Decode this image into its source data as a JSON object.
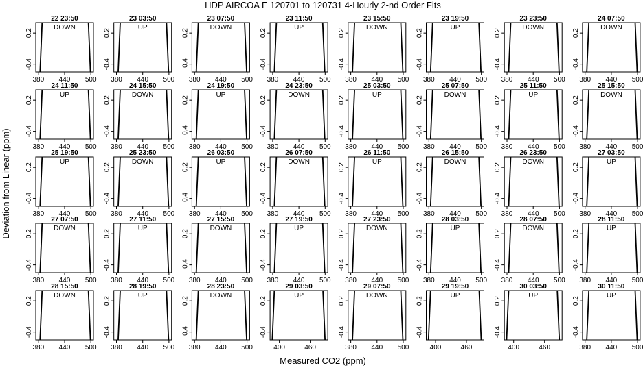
{
  "chart_data": {
    "type": "line",
    "title": "HDP    AIRCOA E    120701 to 120731    4-Hourly 2-nd Order Fits",
    "xlabel": "Measured CO2 (ppm)",
    "ylabel": "Deviation from Linear (ppm)",
    "yticks": [
      "-0.4",
      "0.2"
    ],
    "ylim": [
      -0.55,
      0.4
    ],
    "axis_sets": [
      {
        "xlim": [
          374,
          506
        ],
        "xticks": [
          {
            "v": 380,
            "t": "380"
          },
          {
            "v": 440,
            "t": "440"
          },
          {
            "v": 500,
            "t": "500"
          }
        ]
      },
      {
        "xlim": [
          382,
          494
        ],
        "xticks": [
          {
            "v": 400,
            "t": "400"
          },
          {
            "v": 460,
            "t": "460"
          }
        ]
      }
    ],
    "panels": [
      {
        "label": "22 23:50",
        "direction": "DOWN",
        "axis": 0,
        "x": [
          387,
          496
        ]
      },
      {
        "label": "23 03:50",
        "direction": "UP",
        "axis": 0,
        "x": [
          387,
          496
        ]
      },
      {
        "label": "23 07:50",
        "direction": "DOWN",
        "axis": 0,
        "x": [
          387,
          496
        ]
      },
      {
        "label": "23 11:50",
        "direction": "UP",
        "axis": 0,
        "x": [
          387,
          496
        ]
      },
      {
        "label": "23 15:50",
        "direction": "DOWN",
        "axis": 0,
        "x": [
          387,
          496
        ]
      },
      {
        "label": "23 19:50",
        "direction": "UP",
        "axis": 0,
        "x": [
          387,
          496
        ]
      },
      {
        "label": "23 23:50",
        "direction": "DOWN",
        "axis": 0,
        "x": [
          387,
          496
        ]
      },
      {
        "label": "24 07:50",
        "direction": "DOWN",
        "axis": 0,
        "x": [
          387,
          496
        ]
      },
      {
        "label": "24 11:50",
        "direction": "UP",
        "axis": 0,
        "x": [
          387,
          496
        ]
      },
      {
        "label": "24 15:50",
        "direction": "DOWN",
        "axis": 0,
        "x": [
          387,
          496
        ]
      },
      {
        "label": "24 19:50",
        "direction": "UP",
        "axis": 0,
        "x": [
          387,
          496
        ]
      },
      {
        "label": "24 23:50",
        "direction": "DOWN",
        "axis": 0,
        "x": [
          387,
          496
        ]
      },
      {
        "label": "25 03:50",
        "direction": "UP",
        "axis": 0,
        "x": [
          387,
          496
        ]
      },
      {
        "label": "25 07:50",
        "direction": "DOWN",
        "axis": 0,
        "x": [
          387,
          496
        ]
      },
      {
        "label": "25 11:50",
        "direction": "UP",
        "axis": 0,
        "x": [
          387,
          496
        ]
      },
      {
        "label": "25 15:50",
        "direction": "DOWN",
        "axis": 0,
        "x": [
          387,
          496
        ]
      },
      {
        "label": "25 19:50",
        "direction": "UP",
        "axis": 0,
        "x": [
          387,
          496
        ]
      },
      {
        "label": "25 23:50",
        "direction": "DOWN",
        "axis": 0,
        "x": [
          387,
          496
        ]
      },
      {
        "label": "26 03:50",
        "direction": "UP",
        "axis": 0,
        "x": [
          387,
          496
        ]
      },
      {
        "label": "26 07:50",
        "direction": "DOWN",
        "axis": 0,
        "x": [
          387,
          496
        ]
      },
      {
        "label": "26 11:50",
        "direction": "UP",
        "axis": 0,
        "x": [
          387,
          496
        ]
      },
      {
        "label": "26 15:50",
        "direction": "DOWN",
        "axis": 0,
        "x": [
          387,
          496
        ]
      },
      {
        "label": "26 23:50",
        "direction": "DOWN",
        "axis": 0,
        "x": [
          387,
          496
        ]
      },
      {
        "label": "27 03:50",
        "direction": "UP",
        "axis": 0,
        "x": [
          387,
          496
        ]
      },
      {
        "label": "27 07:50",
        "direction": "DOWN",
        "axis": 0,
        "x": [
          387,
          496
        ]
      },
      {
        "label": "27 11:50",
        "direction": "UP",
        "axis": 0,
        "x": [
          387,
          496
        ]
      },
      {
        "label": "27 15:50",
        "direction": "DOWN",
        "axis": 0,
        "x": [
          387,
          496
        ]
      },
      {
        "label": "27 19:50",
        "direction": "UP",
        "axis": 0,
        "x": [
          387,
          496
        ]
      },
      {
        "label": "27 23:50",
        "direction": "DOWN",
        "axis": 0,
        "x": [
          387,
          496
        ]
      },
      {
        "label": "28 03:50",
        "direction": "UP",
        "axis": 0,
        "x": [
          387,
          496
        ]
      },
      {
        "label": "28 07:50",
        "direction": "DOWN",
        "axis": 0,
        "x": [
          387,
          496
        ]
      },
      {
        "label": "28 11:50",
        "direction": "UP",
        "axis": 0,
        "x": [
          387,
          496
        ]
      },
      {
        "label": "28 15:50",
        "direction": "DOWN",
        "axis": 0,
        "x": [
          387,
          496
        ]
      },
      {
        "label": "28 19:50",
        "direction": "UP",
        "axis": 0,
        "x": [
          387,
          496
        ]
      },
      {
        "label": "28 23:50",
        "direction": "DOWN",
        "axis": 0,
        "x": [
          387,
          496
        ]
      },
      {
        "label": "29 03:50",
        "direction": "UP",
        "axis": 1,
        "x": [
          389,
          486
        ]
      },
      {
        "label": "29 07:50",
        "direction": "DOWN",
        "axis": 0,
        "x": [
          387,
          496
        ]
      },
      {
        "label": "29 19:50",
        "direction": "UP",
        "axis": 1,
        "x": [
          389,
          486
        ]
      },
      {
        "label": "30 03:50",
        "direction": "UP",
        "axis": 1,
        "x": [
          389,
          486
        ]
      },
      {
        "label": "30 11:50",
        "direction": "UP",
        "axis": 0,
        "x": [
          387,
          496
        ]
      }
    ]
  }
}
